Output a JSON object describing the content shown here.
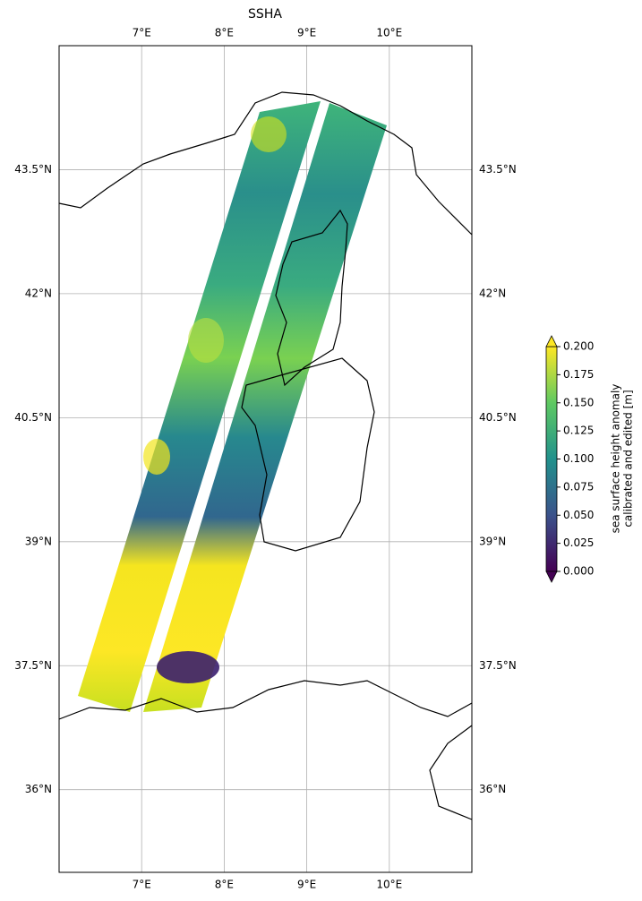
{
  "chart_data": {
    "type": "map",
    "title": "SSHA",
    "xlim": [
      6,
      11
    ],
    "ylim": [
      35,
      45
    ],
    "xticks": [
      {
        "value": 7,
        "label": "7°E"
      },
      {
        "value": 8,
        "label": "8°E"
      },
      {
        "value": 9,
        "label": "9°E"
      },
      {
        "value": 10,
        "label": "10°E"
      }
    ],
    "yticks": [
      {
        "value": 36,
        "label": "36°N"
      },
      {
        "value": 37.5,
        "label": "37.5°N"
      },
      {
        "value": 39,
        "label": "39°N"
      },
      {
        "value": 40.5,
        "label": "40.5°N"
      },
      {
        "value": 42,
        "label": "42°N"
      },
      {
        "value": 43.5,
        "label": "43.5°N"
      }
    ],
    "grid": true,
    "colorbar": {
      "label": [
        "sea surface height anomaly",
        "calibrated and edited [m]"
      ],
      "lim": [
        0,
        0.2
      ],
      "ticks": [
        {
          "value": 0,
          "label": "0.000"
        },
        {
          "value": 0.025,
          "label": "0.025"
        },
        {
          "value": 0.05,
          "label": "0.050"
        },
        {
          "value": 0.075,
          "label": "0.075"
        },
        {
          "value": 0.1,
          "label": "0.100"
        },
        {
          "value": 0.125,
          "label": "0.125"
        },
        {
          "value": 0.15,
          "label": "0.150"
        },
        {
          "value": 0.175,
          "label": "0.175"
        },
        {
          "value": 0.2,
          "label": "0.200"
        }
      ],
      "colors": [
        "#440154",
        "#3b528b",
        "#21918c",
        "#5ec962",
        "#fde725"
      ]
    }
  }
}
